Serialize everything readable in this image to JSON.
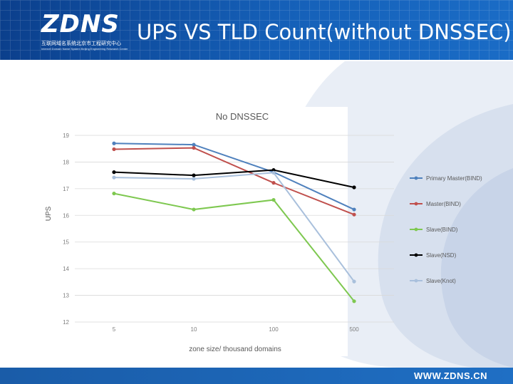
{
  "header": {
    "logo_text": "ZDNS",
    "logo_cn": "互联网域名系统北京市工程研究中心",
    "logo_en": "Internet Domain Name System Beijing Engineering Research Center",
    "title": "UPS VS TLD Count(without DNSSEC)"
  },
  "footer": {
    "url": "WWW.ZDNS.CN"
  },
  "colors": {
    "header_blue": "#1560b8",
    "accent_blue": "#4a7ebb"
  },
  "chart_data": {
    "type": "line",
    "title": "No DNSSEC",
    "xlabel": "zone size/ thousand domains",
    "ylabel": "UPS",
    "categories": [
      "5",
      "10",
      "100",
      "500"
    ],
    "ylim": [
      12,
      19
    ],
    "yticks": [
      12,
      13,
      14,
      15,
      16,
      17,
      18,
      19
    ],
    "grid": true,
    "legend": "right",
    "series": [
      {
        "name": "Primary Master(BIND)",
        "color": "#4f81bd",
        "values": [
          18.7,
          18.65,
          17.62,
          16.22
        ]
      },
      {
        "name": "Master(BIND)",
        "color": "#c0504d",
        "values": [
          18.48,
          18.53,
          17.22,
          16.03
        ]
      },
      {
        "name": "Slave(BIND)",
        "color": "#7ec850",
        "values": [
          16.82,
          16.22,
          16.58,
          12.78
        ]
      },
      {
        "name": "Slave(NSD)",
        "color": "#000000",
        "values": [
          17.62,
          17.5,
          17.7,
          17.05
        ]
      },
      {
        "name": "Slave(Knot)",
        "color": "#a9c0dc",
        "values": [
          17.42,
          17.37,
          17.6,
          13.52
        ]
      }
    ]
  }
}
